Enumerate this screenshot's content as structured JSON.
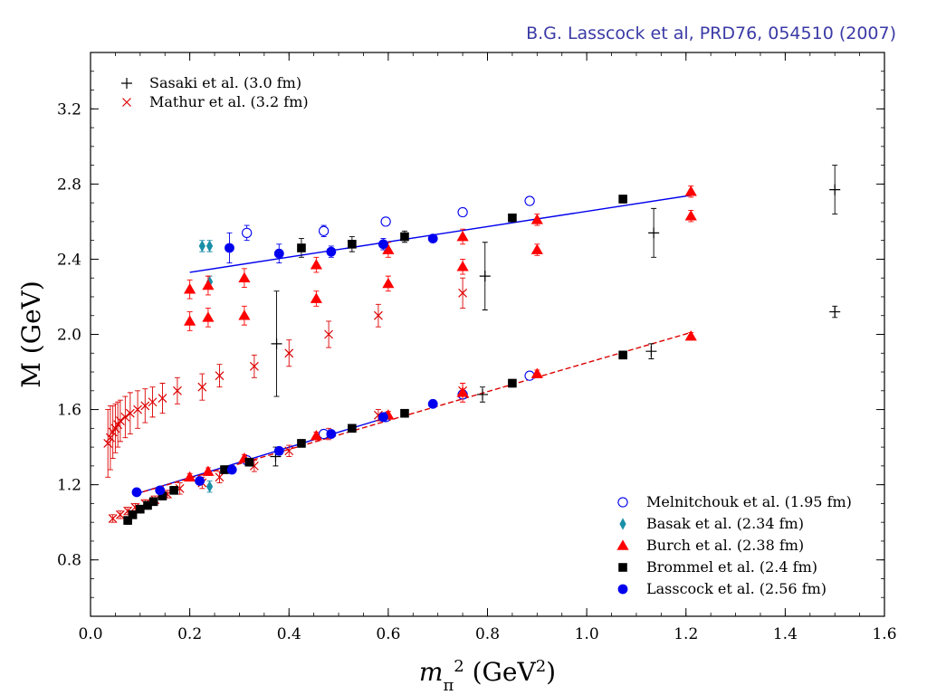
{
  "citation": "B.G. Lasscock et al, PRD76, 054510 (2007)",
  "chart_data": {
    "type": "scatter",
    "xlabel": "m_π^2 (GeV^2)",
    "ylabel": "M (GeV)",
    "xlim": [
      0.0,
      1.6
    ],
    "ylim": [
      0.5,
      3.5
    ],
    "x_ticks": [
      "0.0",
      "0.2",
      "0.4",
      "0.6",
      "0.8",
      "1.0",
      "1.2",
      "1.4",
      "1.6"
    ],
    "y_ticks": [
      "0.8",
      "1.2",
      "1.6",
      "2.0",
      "2.4",
      "2.8",
      "3.2"
    ],
    "grid": false,
    "legend_top_left": {
      "placement": "top-left",
      "entries": [
        "Sasaki et al. (3.0 fm)",
        "Mathur et al. (3.2 fm)"
      ]
    },
    "legend_bottom_right": {
      "placement": "bottom-right",
      "entries": [
        "Melnitchouk et al. (1.95 fm)",
        "Basak et al. (2.34 fm)",
        "Burch et al. (2.38 fm)",
        "Brommel et al. (2.4 fm)",
        "Lasscock et al. (2.56 fm)"
      ]
    },
    "fit_lines": [
      {
        "color": "#0000ee",
        "style": "solid",
        "x": [
          0.2,
          1.21
        ],
        "y": [
          2.33,
          2.74
        ]
      },
      {
        "color": "#0000ee",
        "style": "solid",
        "x": [
          0.09,
          0.6
        ],
        "y": [
          1.15,
          1.56
        ]
      },
      {
        "color": "#dd0000",
        "style": "dashed",
        "x": [
          0.09,
          1.21
        ],
        "y": [
          1.15,
          2.01
        ]
      }
    ],
    "series": [
      {
        "name": "Sasaki et al. (3.0 fm)",
        "marker": "plus",
        "color": "#000000",
        "points": [
          [
            0.373,
            1.35,
            0.05
          ],
          [
            0.375,
            1.95,
            0.28
          ],
          [
            0.79,
            1.68,
            0.04
          ],
          [
            0.795,
            2.31,
            0.18
          ],
          [
            1.13,
            1.91,
            0.04
          ],
          [
            1.135,
            2.54,
            0.13
          ],
          [
            1.5,
            2.12,
            0.03
          ],
          [
            1.5,
            2.77,
            0.13
          ]
        ]
      },
      {
        "name": "Mathur et al. (3.2 fm)",
        "marker": "x",
        "color": "#dd0000",
        "points": [
          [
            0.035,
            1.42,
            0.18
          ],
          [
            0.04,
            1.45,
            0.17
          ],
          [
            0.045,
            1.48,
            0.14
          ],
          [
            0.05,
            1.5,
            0.13
          ],
          [
            0.055,
            1.52,
            0.12
          ],
          [
            0.06,
            1.54,
            0.11
          ],
          [
            0.07,
            1.56,
            0.11
          ],
          [
            0.08,
            1.58,
            0.11
          ],
          [
            0.095,
            1.6,
            0.1
          ],
          [
            0.11,
            1.62,
            0.09
          ],
          [
            0.125,
            1.64,
            0.08
          ],
          [
            0.145,
            1.66,
            0.08
          ],
          [
            0.175,
            1.7,
            0.07
          ],
          [
            0.225,
            1.72,
            0.07
          ],
          [
            0.26,
            1.78,
            0.06
          ],
          [
            0.33,
            1.83,
            0.06
          ],
          [
            0.4,
            1.9,
            0.07
          ],
          [
            0.48,
            2.0,
            0.07
          ],
          [
            0.58,
            2.1,
            0.06
          ],
          [
            0.75,
            2.22,
            0.08
          ],
          [
            0.045,
            1.02,
            0.02
          ],
          [
            0.06,
            1.04,
            0.02
          ],
          [
            0.075,
            1.06,
            0.02
          ],
          [
            0.09,
            1.08,
            0.02
          ],
          [
            0.11,
            1.1,
            0.02
          ],
          [
            0.13,
            1.12,
            0.02
          ],
          [
            0.155,
            1.15,
            0.02
          ],
          [
            0.18,
            1.18,
            0.03
          ],
          [
            0.225,
            1.21,
            0.03
          ],
          [
            0.26,
            1.24,
            0.03
          ],
          [
            0.33,
            1.3,
            0.03
          ],
          [
            0.4,
            1.38,
            0.03
          ],
          [
            0.48,
            1.47,
            0.03
          ],
          [
            0.58,
            1.57,
            0.03
          ],
          [
            0.75,
            1.7,
            0.04
          ]
        ]
      },
      {
        "name": "Melnitchouk et al. (1.95 fm)",
        "marker": "circle-open",
        "color": "#0000ee",
        "points": [
          [
            0.315,
            2.54,
            0.04
          ],
          [
            0.47,
            2.55,
            0.03
          ],
          [
            0.595,
            2.6,
            0.02
          ],
          [
            0.75,
            2.65,
            0.02
          ],
          [
            0.885,
            2.71,
            0.02
          ],
          [
            0.315,
            1.33,
            0.02
          ],
          [
            0.47,
            1.47,
            0.02
          ],
          [
            0.595,
            1.56,
            0.02
          ],
          [
            0.75,
            1.68,
            0.02
          ],
          [
            0.885,
            1.78,
            0.02
          ]
        ]
      },
      {
        "name": "Basak et al. (2.34 fm)",
        "marker": "diamond",
        "color": "#1a8fa8",
        "points": [
          [
            0.225,
            2.47,
            0.03
          ],
          [
            0.24,
            2.47,
            0.03
          ],
          [
            0.24,
            2.28,
            0.03
          ],
          [
            0.24,
            1.19,
            0.03
          ]
        ]
      },
      {
        "name": "Burch et al. (2.38 fm)",
        "marker": "triangle",
        "color": "#ff0000",
        "points": [
          [
            0.2,
            2.24,
            0.05
          ],
          [
            0.2,
            2.07,
            0.05
          ],
          [
            0.237,
            2.26,
            0.05
          ],
          [
            0.237,
            2.09,
            0.05
          ],
          [
            0.31,
            2.3,
            0.05
          ],
          [
            0.31,
            2.1,
            0.05
          ],
          [
            0.455,
            2.37,
            0.04
          ],
          [
            0.455,
            2.19,
            0.04
          ],
          [
            0.6,
            2.45,
            0.04
          ],
          [
            0.6,
            2.27,
            0.04
          ],
          [
            0.75,
            2.52,
            0.04
          ],
          [
            0.75,
            2.36,
            0.04
          ],
          [
            0.9,
            2.61,
            0.03
          ],
          [
            0.9,
            2.45,
            0.03
          ],
          [
            1.21,
            2.76,
            0.03
          ],
          [
            1.21,
            2.63,
            0.03
          ],
          [
            0.2,
            1.24,
            0.02
          ],
          [
            0.237,
            1.27,
            0.02
          ],
          [
            0.31,
            1.34,
            0.02
          ],
          [
            0.455,
            1.46,
            0.02
          ],
          [
            0.6,
            1.57,
            0.02
          ],
          [
            0.75,
            1.69,
            0.05
          ],
          [
            0.9,
            1.79,
            0.02
          ],
          [
            1.21,
            1.99,
            0.02
          ]
        ]
      },
      {
        "name": "Brommel et al. (2.4 fm)",
        "marker": "square",
        "color": "#000000",
        "points": [
          [
            0.425,
            2.46,
            0.05
          ],
          [
            0.527,
            2.48,
            0.04
          ],
          [
            0.633,
            2.52,
            0.03
          ],
          [
            0.85,
            2.62,
            0.02
          ],
          [
            1.073,
            2.72,
            0.02
          ],
          [
            0.075,
            1.01,
            0.02
          ],
          [
            0.085,
            1.04,
            0.02
          ],
          [
            0.1,
            1.07,
            0.02
          ],
          [
            0.115,
            1.09,
            0.02
          ],
          [
            0.127,
            1.11,
            0.02
          ],
          [
            0.145,
            1.14,
            0.02
          ],
          [
            0.168,
            1.17,
            0.02
          ],
          [
            0.27,
            1.28,
            0.02
          ],
          [
            0.32,
            1.32,
            0.02
          ],
          [
            0.425,
            1.42,
            0.02
          ],
          [
            0.527,
            1.5,
            0.02
          ],
          [
            0.633,
            1.58,
            0.02
          ],
          [
            0.85,
            1.74,
            0.02
          ],
          [
            1.073,
            1.89,
            0.02
          ]
        ]
      },
      {
        "name": "Lasscock et al. (2.56 fm)",
        "marker": "circle-filled",
        "color": "#0000ee",
        "points": [
          [
            0.28,
            2.46,
            0.08
          ],
          [
            0.38,
            2.43,
            0.05
          ],
          [
            0.485,
            2.44,
            0.03
          ],
          [
            0.59,
            2.48,
            0.03
          ],
          [
            0.69,
            2.51,
            0.02
          ],
          [
            0.093,
            1.16,
            0.02
          ],
          [
            0.14,
            1.17,
            0.02
          ],
          [
            0.22,
            1.22,
            0.02
          ],
          [
            0.285,
            1.28,
            0.02
          ],
          [
            0.38,
            1.38,
            0.02
          ],
          [
            0.485,
            1.47,
            0.02
          ],
          [
            0.59,
            1.56,
            0.02
          ],
          [
            0.69,
            1.63,
            0.02
          ]
        ]
      }
    ]
  }
}
